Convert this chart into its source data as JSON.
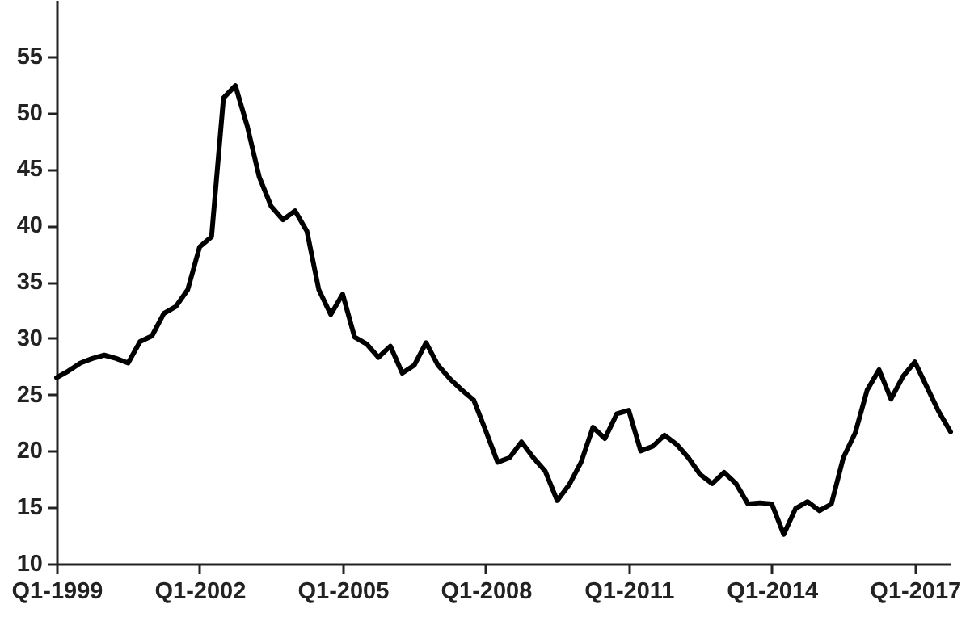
{
  "chart_data": {
    "type": "line",
    "categories": [
      "Q1-1999",
      null,
      null,
      null,
      null,
      null,
      null,
      null,
      null,
      null,
      null,
      null,
      "Q1-2002",
      null,
      null,
      null,
      null,
      null,
      null,
      null,
      null,
      null,
      null,
      null,
      "Q1-2005",
      null,
      null,
      null,
      null,
      null,
      null,
      null,
      null,
      null,
      null,
      null,
      "Q1-2008",
      null,
      null,
      null,
      null,
      null,
      null,
      null,
      null,
      null,
      null,
      null,
      "Q1-2011",
      null,
      null,
      null,
      null,
      null,
      null,
      null,
      null,
      null,
      null,
      null,
      "Q1-2014",
      null,
      null,
      null,
      null,
      null,
      null,
      null,
      null,
      null,
      null,
      null,
      "Q1-2017",
      null,
      null,
      null
    ],
    "series": [
      {
        "color": "#000000",
        "values": [
          26.5,
          27.1,
          27.8,
          28.2,
          28.5,
          28.2,
          27.8,
          29.7,
          30.2,
          32.2,
          32.8,
          34.3,
          38.1,
          39.0,
          51.3,
          52.4,
          48.8,
          44.3,
          41.7,
          40.5,
          41.3,
          39.5,
          34.3,
          32.1,
          33.9,
          30.1,
          29.5,
          28.3,
          29.3,
          26.9,
          27.6,
          29.6,
          27.6,
          26.4,
          25.4,
          24.5,
          21.8,
          19.0,
          19.4,
          20.8,
          19.4,
          18.2,
          15.6,
          17.0,
          19.0,
          22.1,
          21.1,
          23.3,
          23.6,
          20.0,
          20.4,
          21.4,
          20.6,
          19.4,
          17.9,
          17.1,
          18.1,
          17.1,
          15.3,
          15.4,
          15.3,
          12.6,
          14.9,
          15.5,
          14.7,
          15.3,
          19.4,
          21.6,
          25.4,
          27.2,
          24.6,
          26.6,
          27.9,
          25.7,
          23.5,
          21.7
        ]
      }
    ],
    "ylim": [
      10,
      60
    ],
    "yticks": [
      10,
      15,
      20,
      25,
      30,
      35,
      40,
      45,
      50,
      55
    ],
    "grid": false,
    "marker": "none",
    "line_style": "solid"
  }
}
